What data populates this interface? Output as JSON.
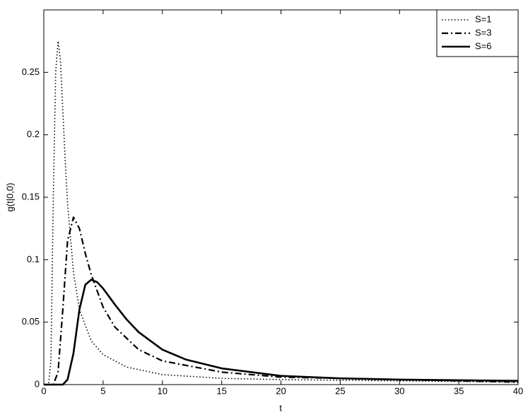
{
  "chart_data": {
    "type": "line",
    "xlabel": "t",
    "ylabel": "g(t|0,0)",
    "xlim": [
      0,
      40
    ],
    "xticks": [
      0,
      5,
      10,
      15,
      20,
      25,
      30,
      35,
      40
    ],
    "ylim": [
      0,
      0.3
    ],
    "yticks": [
      0,
      0.05,
      0.1,
      0.15,
      0.2,
      0.25
    ],
    "grid": false,
    "legend": "top-right",
    "series": [
      {
        "name": "S=1",
        "color": "#000000",
        "line_style": "dotted",
        "x": [
          0,
          0.4,
          0.6,
          0.8,
          1.0,
          1.2,
          1.4,
          1.6,
          1.8,
          2,
          2.5,
          3,
          4,
          5,
          7,
          10,
          15,
          20,
          30,
          40
        ],
        "values": [
          0,
          0,
          0.02,
          0.15,
          0.25,
          0.275,
          0.26,
          0.22,
          0.18,
          0.145,
          0.09,
          0.06,
          0.035,
          0.024,
          0.014,
          0.008,
          0.005,
          0.004,
          0.003,
          0.002
        ]
      },
      {
        "name": "S=3",
        "color": "#000000",
        "line_style": "dashdot",
        "x": [
          0,
          0.8,
          1.2,
          1.6,
          2,
          2.5,
          3,
          3.5,
          4,
          5,
          6,
          8,
          10,
          15,
          20,
          30,
          40
        ],
        "values": [
          0,
          0,
          0.01,
          0.06,
          0.115,
          0.134,
          0.125,
          0.105,
          0.088,
          0.062,
          0.046,
          0.028,
          0.019,
          0.01,
          0.006,
          0.004,
          0.002
        ]
      },
      {
        "name": "S=6",
        "color": "#000000",
        "line_style": "solid",
        "x": [
          0,
          1.6,
          2,
          2.5,
          3,
          3.5,
          4,
          4.5,
          5,
          6,
          7,
          8,
          10,
          12,
          15,
          20,
          25,
          30,
          40
        ],
        "values": [
          0,
          0,
          0.004,
          0.025,
          0.06,
          0.08,
          0.084,
          0.082,
          0.077,
          0.064,
          0.052,
          0.042,
          0.028,
          0.02,
          0.013,
          0.007,
          0.005,
          0.004,
          0.003
        ]
      }
    ]
  }
}
